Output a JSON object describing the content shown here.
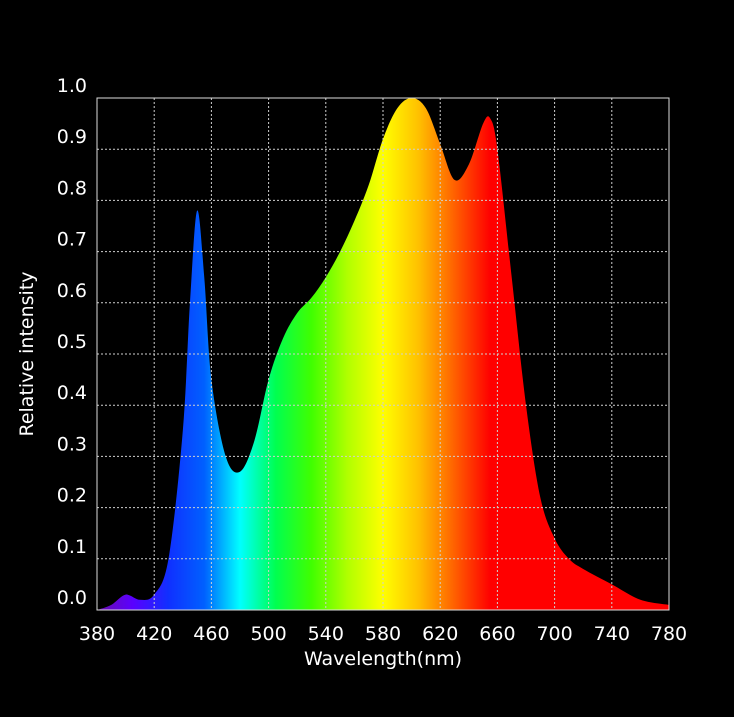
{
  "chart_data": {
    "type": "area",
    "xlabel": "Wavelength(nm)",
    "ylabel": "Relative intensity",
    "x": [
      380,
      390,
      400,
      410,
      420,
      430,
      440,
      445,
      450,
      455,
      460,
      470,
      480,
      490,
      500,
      510,
      520,
      530,
      540,
      550,
      560,
      570,
      580,
      590,
      600,
      610,
      620,
      630,
      640,
      650,
      655,
      660,
      670,
      680,
      690,
      700,
      710,
      720,
      740,
      760,
      780
    ],
    "values": [
      0.0,
      0.01,
      0.03,
      0.02,
      0.03,
      0.1,
      0.35,
      0.6,
      0.78,
      0.65,
      0.45,
      0.3,
      0.27,
      0.33,
      0.45,
      0.53,
      0.58,
      0.61,
      0.65,
      0.7,
      0.76,
      0.83,
      0.92,
      0.98,
      1.0,
      0.98,
      0.91,
      0.84,
      0.87,
      0.95,
      0.96,
      0.9,
      0.65,
      0.4,
      0.22,
      0.14,
      0.1,
      0.08,
      0.05,
      0.02,
      0.01
    ],
    "gradient_colors": [
      "#6a0dad",
      "#5a00ff",
      "#1030ff",
      "#0060ff",
      "#00ffff",
      "#00ff50",
      "#40ff00",
      "#b0ff00",
      "#ffff00",
      "#ffc000",
      "#ff6000",
      "#ff0000",
      "#ff0000",
      "#ff0000",
      "#ff0000",
      "#ff0000",
      "#ff0000"
    ],
    "xlim": [
      380,
      780
    ],
    "ylim": [
      0,
      1
    ],
    "xticks": [
      380,
      420,
      460,
      500,
      540,
      580,
      620,
      660,
      700,
      740,
      780
    ],
    "yticks": [
      {
        "value": 0,
        "label": "0.0"
      },
      0.1,
      0.2,
      0.3,
      0.4,
      0.5,
      0.6,
      0.7,
      0.8,
      0.9,
      {
        "value": 1,
        "label": "1.0"
      }
    ],
    "grid": true
  }
}
